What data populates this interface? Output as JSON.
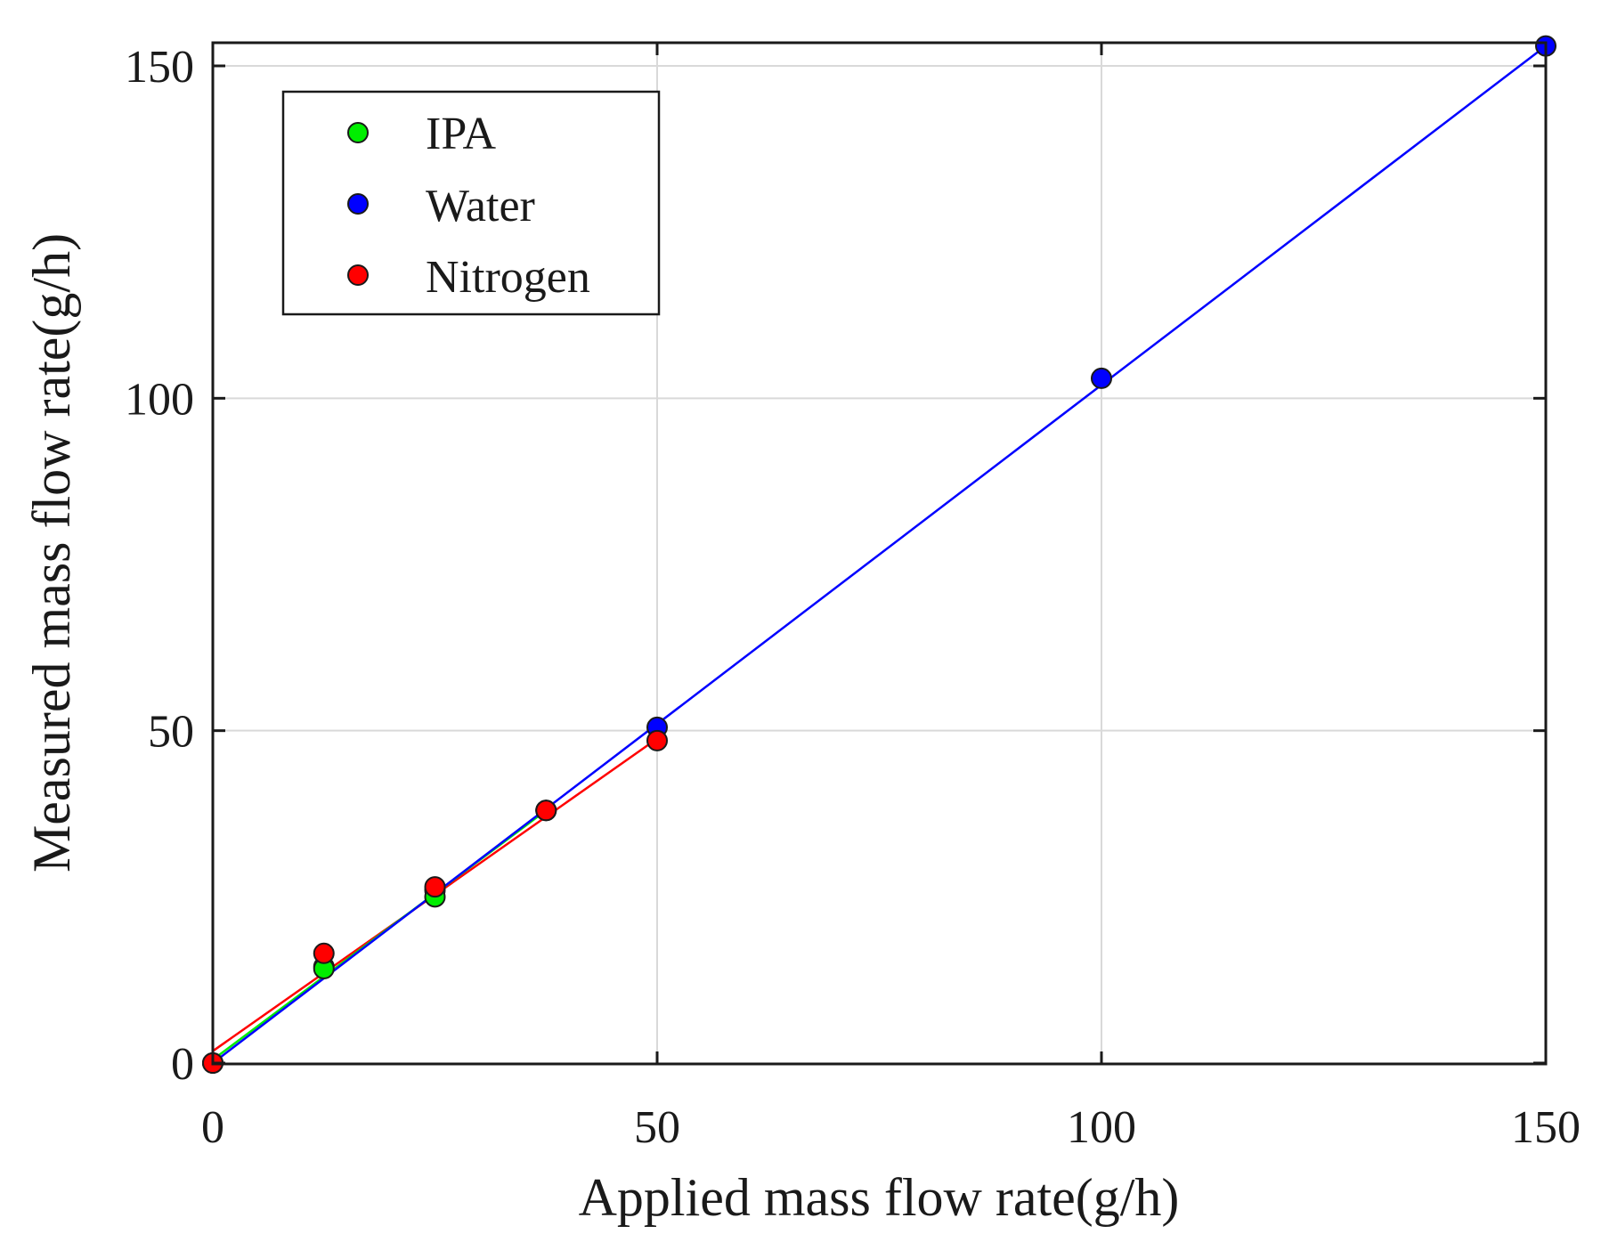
{
  "chart_data": {
    "type": "scatter",
    "title": "",
    "xlabel": "Applied mass flow rate(g/h)",
    "ylabel": "Measured mass flow rate(g/h)",
    "xlim": [
      0,
      150
    ],
    "ylim": [
      0,
      150
    ],
    "xticks": [
      0,
      50,
      100,
      150
    ],
    "yticks": [
      0,
      50,
      100,
      150
    ],
    "xtick_labels": [
      "0",
      "50",
      "100",
      "150"
    ],
    "ytick_labels": [
      "0",
      "50",
      "100",
      "150"
    ],
    "grid": true,
    "legend_position": "top-left",
    "series": [
      {
        "name": "IPA",
        "color": "#00ee00",
        "x": [
          0,
          12.5,
          25,
          37.5
        ],
        "y": [
          0,
          14.2,
          25.0,
          38.0
        ],
        "fit": {
          "slope": 1.0,
          "intercept": 0.5,
          "x_range": [
            0,
            37.5
          ]
        }
      },
      {
        "name": "Water",
        "color": "#0000ff",
        "x": [
          0,
          12.5,
          25,
          37.5,
          50,
          100,
          150
        ],
        "y": [
          0,
          14.5,
          26.0,
          38.0,
          50.5,
          103.0,
          153.0
        ],
        "fit": {
          "slope": 1.02,
          "intercept": 0.0,
          "x_range": [
            0,
            150
          ]
        }
      },
      {
        "name": "Nitrogen",
        "color": "#ff0000",
        "x": [
          0,
          12.5,
          25,
          37.5,
          50
        ],
        "y": [
          0,
          16.5,
          26.5,
          38.0,
          48.5
        ],
        "fit": {
          "slope": 0.94,
          "intercept": 1.8,
          "x_range": [
            0,
            50
          ]
        }
      }
    ]
  }
}
